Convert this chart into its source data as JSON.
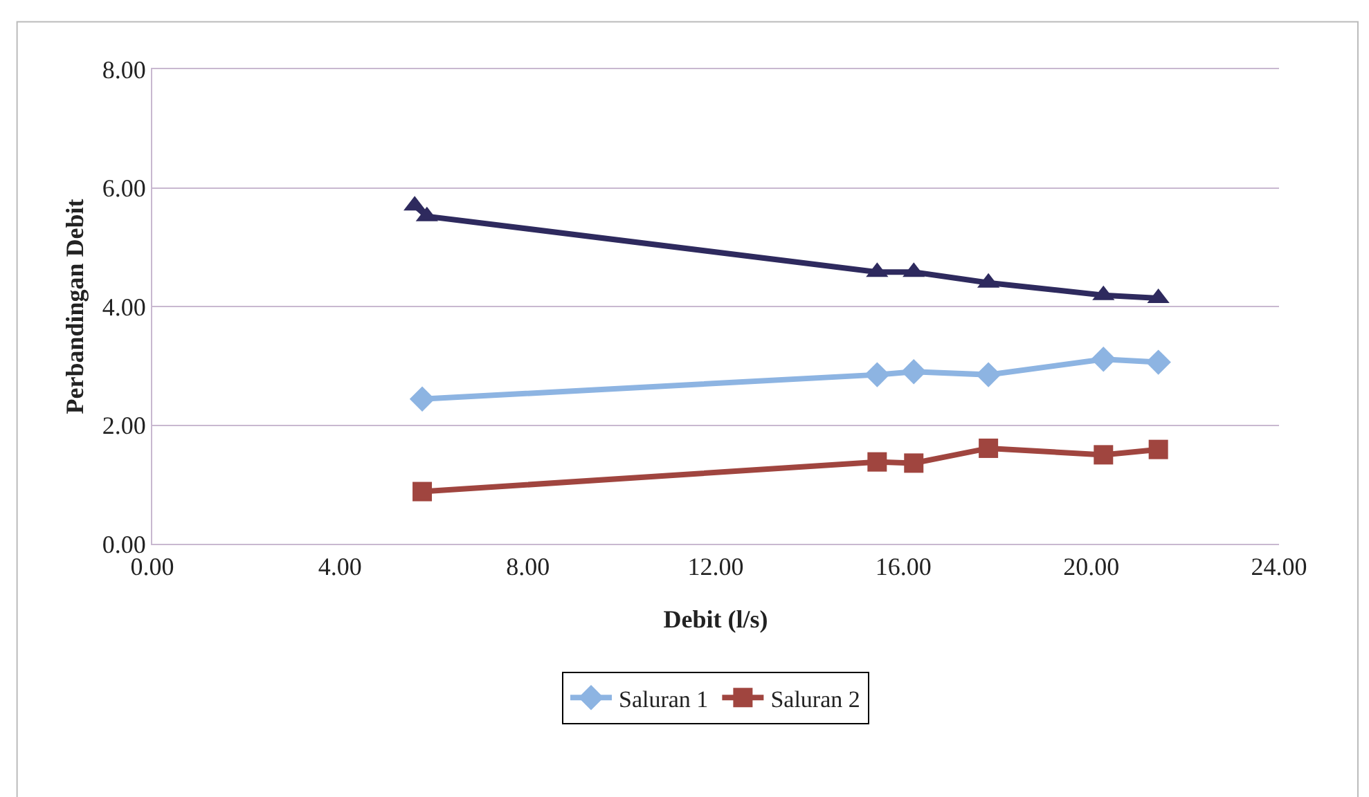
{
  "chart_data": {
    "type": "line",
    "xlabel": "Debit (l/s)",
    "ylabel": "Perbandingan Debit",
    "xlim": [
      0,
      24
    ],
    "xticks": [
      {
        "value": 0,
        "label": "0.00"
      },
      {
        "value": 4,
        "label": "4.00"
      },
      {
        "value": 8,
        "label": "8.00"
      },
      {
        "value": 12,
        "label": "12.00"
      },
      {
        "value": 16,
        "label": "16.00"
      },
      {
        "value": 20,
        "label": "20.00"
      },
      {
        "value": 24,
        "label": "24.00"
      }
    ],
    "ylim": [
      0,
      8
    ],
    "yticks": [
      {
        "value": 0,
        "label": "0.00"
      },
      {
        "value": 2,
        "label": "2.00"
      },
      {
        "value": 4,
        "label": "4.00"
      },
      {
        "value": 6,
        "label": "6.00"
      },
      {
        "value": 8,
        "label": "8.00"
      }
    ],
    "grid": "y",
    "legend": "bottom",
    "series": [
      {
        "name": "Saluran 1",
        "color": "#8db4e2",
        "marker": "diamond",
        "x": [
          5.75,
          15.44,
          16.22,
          17.81,
          20.26,
          21.43
        ],
        "values": [
          2.44,
          2.85,
          2.9,
          2.85,
          3.11,
          3.06
        ]
      },
      {
        "name": "Saluran 2",
        "color": "#a0453f",
        "marker": "square",
        "x": [
          5.75,
          15.44,
          16.22,
          17.81,
          20.26,
          21.43
        ],
        "values": [
          0.88,
          1.38,
          1.36,
          1.61,
          1.5,
          1.59
        ]
      },
      {
        "color": "#2e2a5e",
        "marker": "triangle",
        "x": [
          5.59,
          5.85,
          15.44,
          16.22,
          17.81,
          20.26,
          21.43
        ],
        "values": [
          5.7,
          5.52,
          4.58,
          4.58,
          4.4,
          4.19,
          4.14
        ]
      }
    ]
  }
}
